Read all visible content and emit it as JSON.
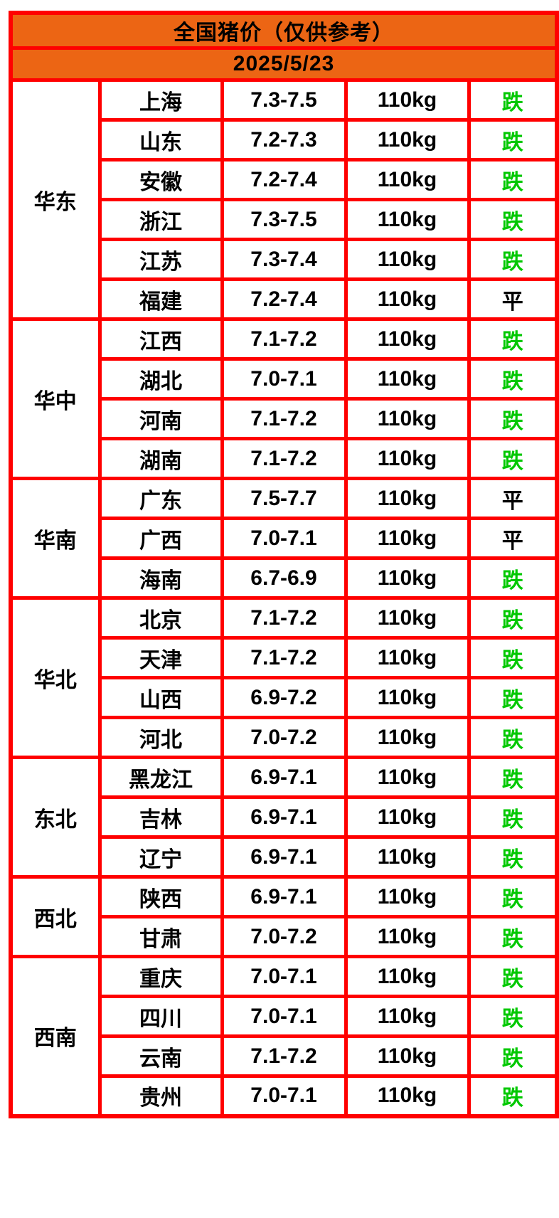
{
  "title": "全国猪价（仅供参考）",
  "date": "2025/5/23",
  "weight_label": "110kg",
  "trend_labels": {
    "fall": "跌",
    "flat": "平"
  },
  "colors": {
    "header_bg": "#EC6514",
    "grid_border": "#FF0000",
    "fall_green": "#00C800",
    "flat_black": "#000000",
    "text": "#000000",
    "page_bg": "#FFFFFF"
  },
  "chart_data": {
    "type": "table",
    "title": "全国猪价（仅供参考）",
    "subtitle": "2025/5/23",
    "groups": [
      {
        "region": "华东",
        "rows": [
          {
            "province": "上海",
            "price": "7.3-7.5",
            "weight": "110kg",
            "trend": "跌"
          },
          {
            "province": "山东",
            "price": "7.2-7.3",
            "weight": "110kg",
            "trend": "跌"
          },
          {
            "province": "安徽",
            "price": "7.2-7.4",
            "weight": "110kg",
            "trend": "跌"
          },
          {
            "province": "浙江",
            "price": "7.3-7.5",
            "weight": "110kg",
            "trend": "跌"
          },
          {
            "province": "江苏",
            "price": "7.3-7.4",
            "weight": "110kg",
            "trend": "跌"
          },
          {
            "province": "福建",
            "price": "7.2-7.4",
            "weight": "110kg",
            "trend": "平"
          }
        ]
      },
      {
        "region": "华中",
        "rows": [
          {
            "province": "江西",
            "price": "7.1-7.2",
            "weight": "110kg",
            "trend": "跌"
          },
          {
            "province": "湖北",
            "price": "7.0-7.1",
            "weight": "110kg",
            "trend": "跌"
          },
          {
            "province": "河南",
            "price": "7.1-7.2",
            "weight": "110kg",
            "trend": "跌"
          },
          {
            "province": "湖南",
            "price": "7.1-7.2",
            "weight": "110kg",
            "trend": "跌"
          }
        ]
      },
      {
        "region": "华南",
        "rows": [
          {
            "province": "广东",
            "price": "7.5-7.7",
            "weight": "110kg",
            "trend": "平"
          },
          {
            "province": "广西",
            "price": "7.0-7.1",
            "weight": "110kg",
            "trend": "平"
          },
          {
            "province": "海南",
            "price": "6.7-6.9",
            "weight": "110kg",
            "trend": "跌"
          }
        ]
      },
      {
        "region": "华北",
        "rows": [
          {
            "province": "北京",
            "price": "7.1-7.2",
            "weight": "110kg",
            "trend": "跌"
          },
          {
            "province": "天津",
            "price": "7.1-7.2",
            "weight": "110kg",
            "trend": "跌"
          },
          {
            "province": "山西",
            "price": "6.9-7.2",
            "weight": "110kg",
            "trend": "跌"
          },
          {
            "province": "河北",
            "price": "7.0-7.2",
            "weight": "110kg",
            "trend": "跌"
          }
        ]
      },
      {
        "region": "东北",
        "rows": [
          {
            "province": "黑龙江",
            "price": "6.9-7.1",
            "weight": "110kg",
            "trend": "跌"
          },
          {
            "province": "吉林",
            "price": "6.9-7.1",
            "weight": "110kg",
            "trend": "跌"
          },
          {
            "province": "辽宁",
            "price": "6.9-7.1",
            "weight": "110kg",
            "trend": "跌"
          }
        ]
      },
      {
        "region": "西北",
        "rows": [
          {
            "province": "陕西",
            "price": "6.9-7.1",
            "weight": "110kg",
            "trend": "跌"
          },
          {
            "province": "甘肃",
            "price": "7.0-7.2",
            "weight": "110kg",
            "trend": "跌"
          }
        ]
      },
      {
        "region": "西南",
        "rows": [
          {
            "province": "重庆",
            "price": "7.0-7.1",
            "weight": "110kg",
            "trend": "跌"
          },
          {
            "province": "四川",
            "price": "7.0-7.1",
            "weight": "110kg",
            "trend": "跌"
          },
          {
            "province": "云南",
            "price": "7.1-7.2",
            "weight": "110kg",
            "trend": "跌"
          },
          {
            "province": "贵州",
            "price": "7.0-7.1",
            "weight": "110kg",
            "trend": "跌"
          }
        ]
      }
    ]
  }
}
